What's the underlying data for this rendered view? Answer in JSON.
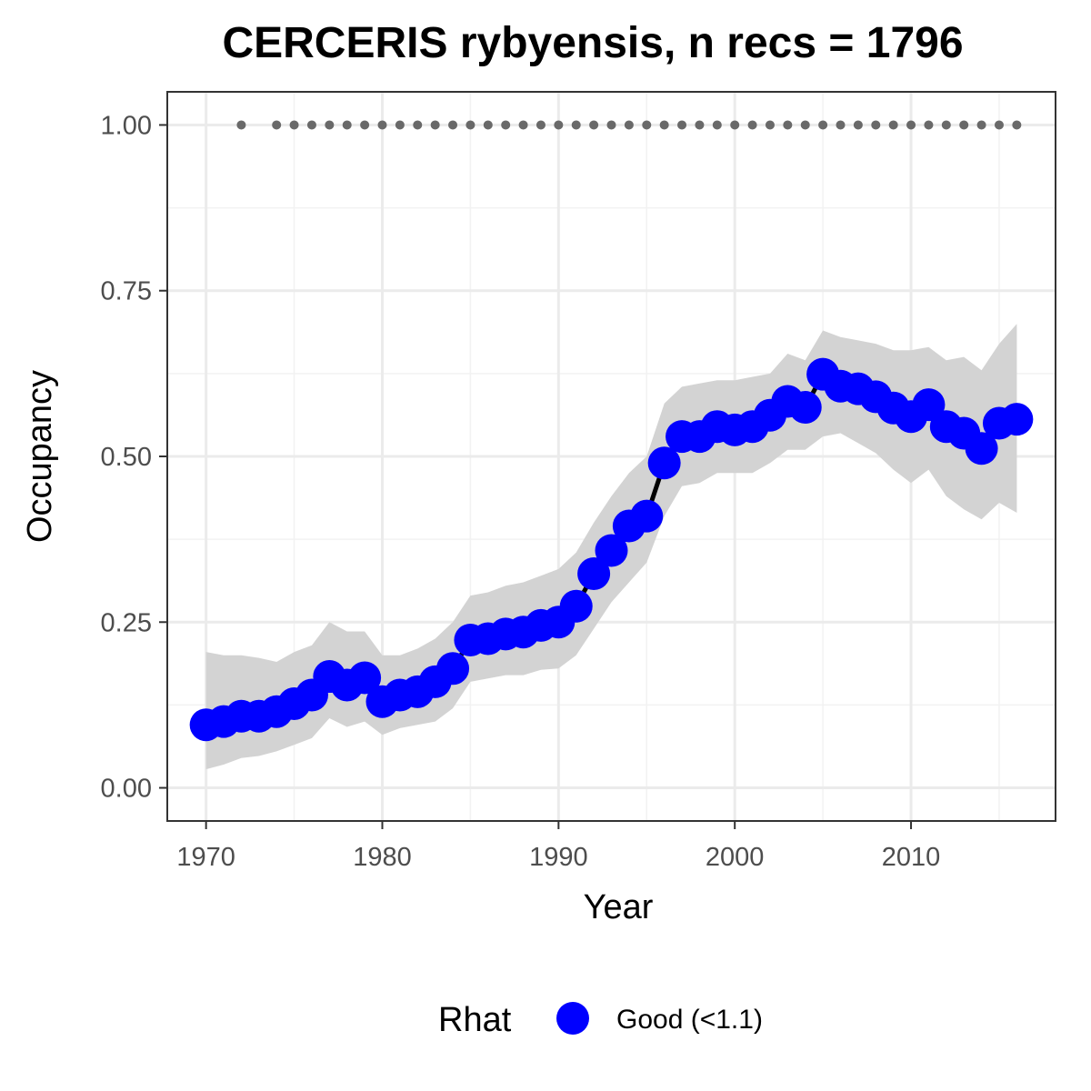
{
  "chart_data": {
    "type": "line",
    "title": "CERCERIS rybyensis, n recs = 1796",
    "xlabel": "Year",
    "ylabel": "Occupancy",
    "xlim": [
      1967.8,
      2018.2
    ],
    "ylim": [
      -0.05,
      1.05
    ],
    "x_ticks": [
      1970,
      1980,
      1990,
      2000,
      2010
    ],
    "x_tick_labels": [
      "1970",
      "1980",
      "1990",
      "2000",
      "2010"
    ],
    "y_ticks": [
      0,
      0.25,
      0.5,
      0.75,
      1
    ],
    "y_tick_labels": [
      "0.00",
      "0.25",
      "0.50",
      "0.75",
      "1.00"
    ],
    "grid": true,
    "legend": {
      "title": "Rhat",
      "placement": "bottom",
      "entries": [
        {
          "label": "Good (<1.1)",
          "color": "#0000ff"
        }
      ]
    },
    "colors": {
      "line": "#000000",
      "points": "#0000ff",
      "band": "#d3d3d3",
      "data_years": "#696969"
    },
    "series": [
      {
        "x": [
          1970,
          1971,
          1972,
          1973,
          1974,
          1975,
          1976,
          1977,
          1978,
          1979,
          1980,
          1981,
          1982,
          1983,
          1984,
          1985,
          1986,
          1987,
          1988,
          1989,
          1990,
          1991,
          1992,
          1993,
          1994,
          1995,
          1996,
          1997,
          1998,
          1999,
          2000,
          2001,
          2002,
          2003,
          2004,
          2005,
          2006,
          2007,
          2008,
          2009,
          2010,
          2011,
          2012,
          2013,
          2014,
          2015,
          2016
        ],
        "y": [
          0.095,
          0.1,
          0.108,
          0.108,
          0.115,
          0.127,
          0.14,
          0.168,
          0.155,
          0.166,
          0.13,
          0.14,
          0.145,
          0.16,
          0.18,
          0.223,
          0.225,
          0.232,
          0.235,
          0.245,
          0.25,
          0.274,
          0.323,
          0.358,
          0.395,
          0.41,
          0.49,
          0.53,
          0.53,
          0.545,
          0.54,
          0.545,
          0.562,
          0.583,
          0.574,
          0.624,
          0.606,
          0.602,
          0.59,
          0.573,
          0.56,
          0.578,
          0.545,
          0.535,
          0.512,
          0.55,
          0.556
        ],
        "lower": [
          0.028,
          0.035,
          0.045,
          0.048,
          0.055,
          0.065,
          0.075,
          0.105,
          0.092,
          0.1,
          0.08,
          0.09,
          0.095,
          0.1,
          0.12,
          0.16,
          0.165,
          0.17,
          0.17,
          0.178,
          0.18,
          0.2,
          0.24,
          0.28,
          0.31,
          0.34,
          0.41,
          0.455,
          0.46,
          0.475,
          0.475,
          0.475,
          0.49,
          0.51,
          0.51,
          0.53,
          0.535,
          0.52,
          0.505,
          0.48,
          0.46,
          0.48,
          0.44,
          0.42,
          0.405,
          0.43,
          0.415
        ],
        "upper": [
          0.205,
          0.2,
          0.2,
          0.196,
          0.19,
          0.205,
          0.215,
          0.25,
          0.236,
          0.236,
          0.2,
          0.2,
          0.21,
          0.225,
          0.25,
          0.29,
          0.295,
          0.305,
          0.31,
          0.32,
          0.33,
          0.355,
          0.4,
          0.44,
          0.475,
          0.5,
          0.58,
          0.605,
          0.61,
          0.615,
          0.615,
          0.62,
          0.625,
          0.655,
          0.645,
          0.69,
          0.68,
          0.675,
          0.67,
          0.66,
          0.66,
          0.665,
          0.645,
          0.65,
          0.63,
          0.67,
          0.7
        ]
      }
    ],
    "data_years": [
      1972,
      1974,
      1975,
      1976,
      1977,
      1978,
      1979,
      1980,
      1981,
      1982,
      1983,
      1984,
      1985,
      1986,
      1987,
      1988,
      1989,
      1990,
      1991,
      1992,
      1993,
      1994,
      1995,
      1996,
      1997,
      1998,
      1999,
      2000,
      2001,
      2002,
      2003,
      2004,
      2005,
      2006,
      2007,
      2008,
      2009,
      2010,
      2011,
      2012,
      2013,
      2014,
      2015,
      2016
    ],
    "data_years_y": 1
  }
}
